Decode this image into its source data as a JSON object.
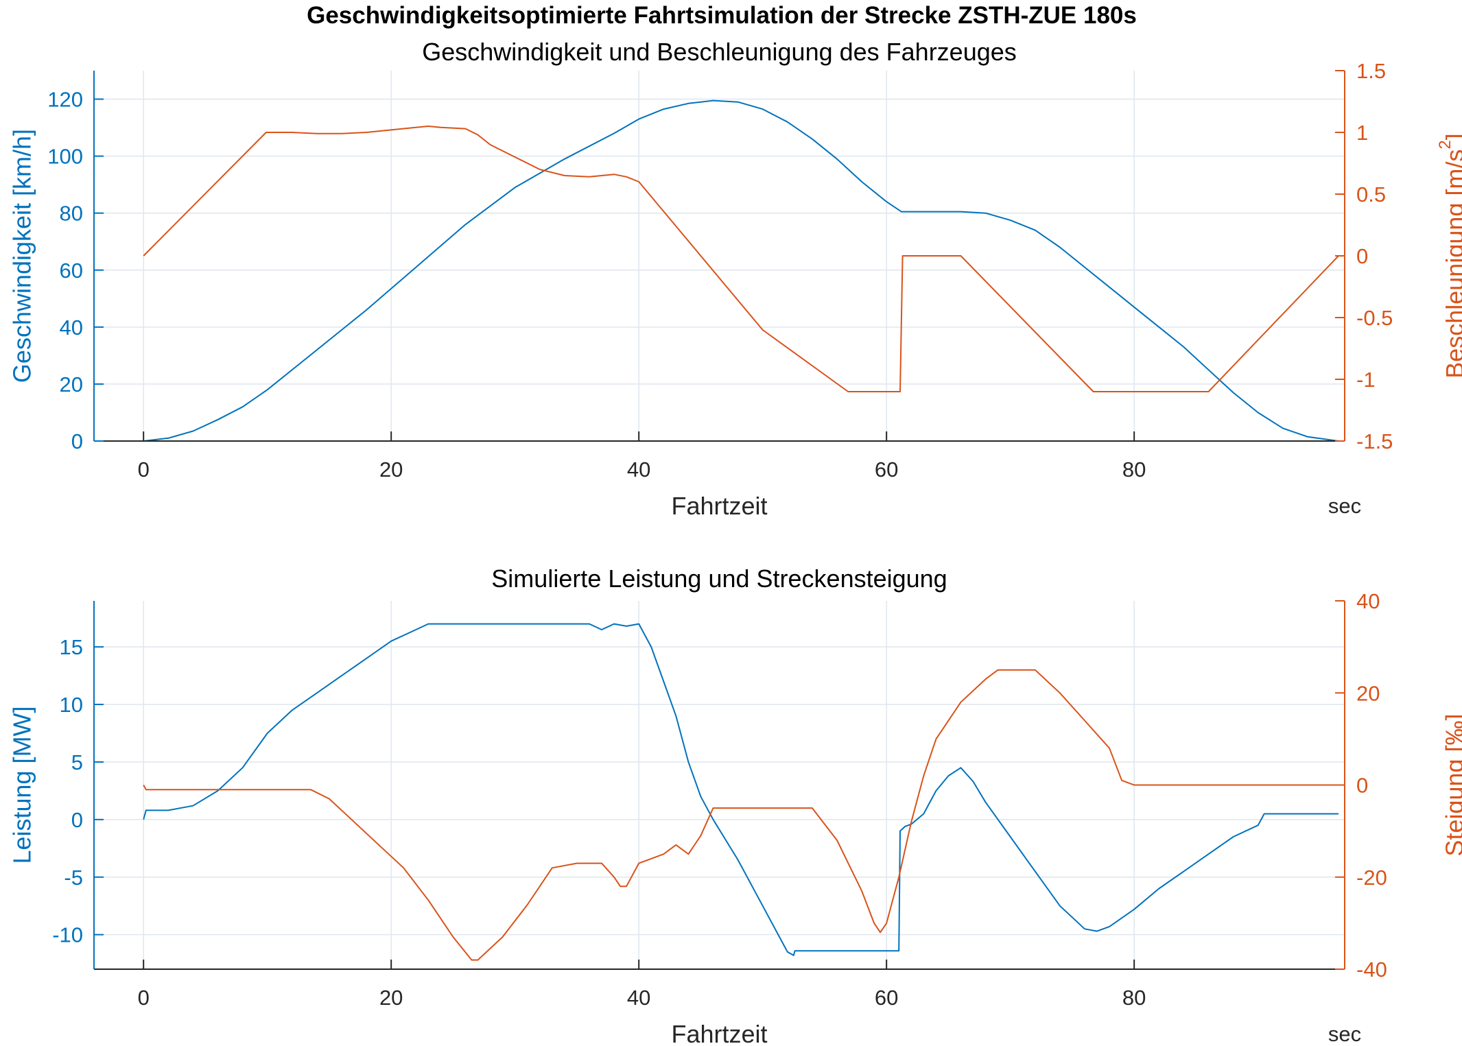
{
  "figure": {
    "title": "Geschwindigkeitsoptimierte Fahrtsimulation der Strecke ZSTH-ZUE 180s",
    "left_color": "#0072bd",
    "right_color": "#d95319"
  },
  "chart_data": [
    {
      "type": "line",
      "title": "Geschwindigkeit und Beschleunigung des Fahrzeuges",
      "xlabel": "Fahrtzeit",
      "xunit": "sec",
      "xlim": [
        -4,
        97
      ],
      "xticks": [
        0,
        20,
        40,
        60,
        80
      ],
      "ylabel_left": "Geschwindigkeit [km/h]",
      "ylim_left": [
        0,
        130
      ],
      "yticks_left": [
        0,
        20,
        40,
        60,
        80,
        100,
        120
      ],
      "ylabel_right_base": "Beschleunigung [m/s",
      "ylabel_right_sup": "2",
      "ylabel_right_end": "]",
      "ylim_right": [
        -1.5,
        1.5
      ],
      "yticks_right": [
        -1.5,
        -1,
        -0.5,
        0,
        0.5,
        1,
        1.5
      ],
      "ytick_labels_right": [
        "-1.5",
        "-1",
        "-0.5",
        "0",
        "0.5",
        "1",
        "1.5"
      ],
      "grid": true,
      "series": [
        {
          "axis": "left",
          "color": "#0072bd",
          "x": [
            0,
            2,
            4,
            6,
            8,
            10,
            14,
            18,
            22,
            26,
            30,
            34,
            38,
            40,
            42,
            44,
            46,
            48,
            50,
            52,
            54,
            56,
            58,
            60,
            61.2,
            63,
            66,
            68,
            70,
            72,
            74,
            76,
            78,
            80,
            82,
            84,
            86,
            88,
            90,
            92,
            94,
            96.5
          ],
          "y": [
            0,
            1,
            3.5,
            7.5,
            12,
            18,
            32,
            46,
            61,
            76,
            89,
            99,
            108,
            113,
            116.5,
            118.5,
            119.5,
            119,
            116.5,
            112,
            106,
            99,
            91,
            84,
            80.5,
            80.5,
            80.5,
            80,
            77.5,
            74,
            68,
            61,
            54,
            47,
            40,
            33,
            25,
            17,
            10,
            4.5,
            1.5,
            0
          ]
        },
        {
          "axis": "right",
          "color": "#d95319",
          "x": [
            0,
            9.9,
            12,
            14,
            16,
            18,
            20,
            22,
            23,
            24,
            26,
            27,
            28,
            30,
            32,
            34,
            36,
            38,
            39,
            40,
            45,
            50,
            56.9,
            61.1,
            61.3,
            66,
            76.7,
            86,
            96.5
          ],
          "y": [
            0,
            1,
            1,
            0.99,
            0.99,
            1,
            1.02,
            1.04,
            1.05,
            1.04,
            1.03,
            0.98,
            0.9,
            0.8,
            0.7,
            0.65,
            0.64,
            0.66,
            0.64,
            0.6,
            0.0,
            -0.6,
            -1.1,
            -1.1,
            0,
            0,
            -1.1,
            -1.1,
            0
          ]
        }
      ]
    },
    {
      "type": "line",
      "title": "Simulierte Leistung und Streckensteigung",
      "xlabel": "Fahrtzeit",
      "xunit": "sec",
      "xlim": [
        -4,
        97
      ],
      "xticks": [
        0,
        20,
        40,
        60,
        80
      ],
      "ylabel_left": "Leistung [MW]",
      "ylim_left": [
        -13,
        19
      ],
      "yticks_left": [
        -10,
        -5,
        0,
        5,
        10,
        15
      ],
      "ylabel_right": "Steigung [‰]",
      "ylim_right": [
        -40,
        40
      ],
      "yticks_right": [
        -40,
        -20,
        0,
        20,
        40
      ],
      "grid": true,
      "series": [
        {
          "axis": "left",
          "color": "#0072bd",
          "x": [
            0,
            0.2,
            2,
            4,
            6,
            8,
            10,
            12,
            14,
            16,
            18,
            20,
            22,
            23,
            25,
            28,
            30,
            32,
            34,
            36,
            37,
            38,
            39,
            40,
            41,
            42,
            43,
            44,
            45,
            46,
            48,
            50,
            52,
            52.5,
            52.6,
            61,
            61.1,
            61.5,
            62,
            63,
            64,
            65,
            66,
            67,
            68,
            70,
            72,
            74,
            76,
            77,
            78,
            80,
            82,
            84,
            86,
            88,
            90,
            90.5,
            91,
            96.5
          ],
          "y": [
            0,
            0.8,
            0.8,
            1.2,
            2.5,
            4.5,
            7.5,
            9.5,
            11,
            12.5,
            14,
            15.5,
            16.5,
            17,
            17,
            17,
            17,
            17,
            17,
            17,
            16.5,
            17,
            16.8,
            17,
            15,
            12,
            9,
            5,
            2,
            0,
            -3.5,
            -7.5,
            -11.5,
            -11.8,
            -11.4,
            -11.4,
            -1,
            -0.6,
            -0.4,
            0.5,
            2.5,
            3.8,
            4.5,
            3.3,
            1.5,
            -1.5,
            -4.5,
            -7.5,
            -9.5,
            -9.7,
            -9.3,
            -7.8,
            -6,
            -4.5,
            -3,
            -1.5,
            -0.5,
            0.5,
            0.5,
            0.5
          ]
        },
        {
          "axis": "right",
          "color": "#d95319",
          "x": [
            0,
            0.2,
            13.5,
            15,
            17,
            19,
            21,
            23,
            25,
            26.5,
            27,
            29,
            31,
            32,
            33,
            35,
            36,
            37,
            38,
            38.5,
            39,
            40,
            41,
            42,
            43,
            44,
            45,
            46,
            47,
            50,
            54,
            56,
            58,
            59,
            59.5,
            60,
            61,
            62,
            63,
            64,
            66,
            68,
            69,
            70,
            72,
            74,
            76,
            78,
            79,
            80,
            96.5
          ],
          "y": [
            0,
            -1,
            -1,
            -3,
            -8,
            -13,
            -18,
            -25,
            -33,
            -38,
            -38,
            -33,
            -26,
            -22,
            -18,
            -17,
            -17,
            -17,
            -20,
            -22,
            -22,
            -17,
            -16,
            -15,
            -13,
            -15,
            -11,
            -5,
            -5,
            -5,
            -5,
            -12,
            -23,
            -30,
            -32,
            -30,
            -20,
            -8,
            2,
            10,
            18,
            23,
            25,
            25,
            25,
            20,
            14,
            8,
            1,
            0,
            0
          ]
        }
      ]
    }
  ]
}
